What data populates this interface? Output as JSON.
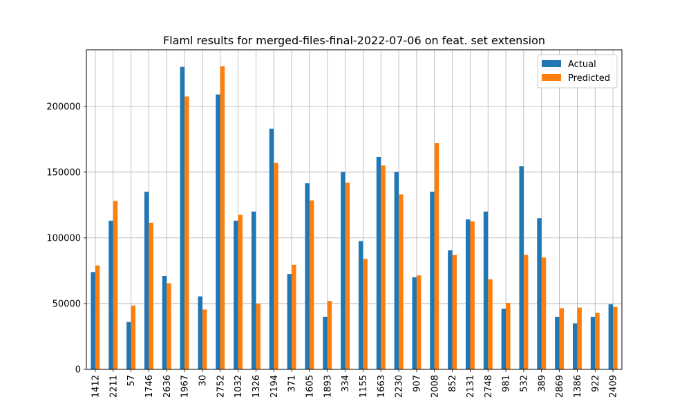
{
  "chart_data": {
    "type": "bar",
    "title": "Flaml results for merged-files-final-2022-07-06 on feat. set extension",
    "xlabel": "",
    "ylabel": "",
    "ylim": [
      0,
      243000
    ],
    "yticks": [
      0,
      50000,
      100000,
      150000,
      200000
    ],
    "grid": true,
    "legend_position": "top-right",
    "categories": [
      "1412",
      "2211",
      "57",
      "1746",
      "2636",
      "1967",
      "30",
      "2752",
      "1032",
      "1326",
      "2194",
      "371",
      "1605",
      "1893",
      "334",
      "1155",
      "1663",
      "2230",
      "907",
      "2008",
      "852",
      "2131",
      "2748",
      "981",
      "532",
      "389",
      "2869",
      "1386",
      "922",
      "2409"
    ],
    "series": [
      {
        "name": "Actual",
        "color": "#1f77b4",
        "values": [
          74000,
          113000,
          36000,
          135000,
          71000,
          230000,
          55500,
          209000,
          113000,
          120000,
          183000,
          72500,
          141500,
          40000,
          150000,
          97500,
          161500,
          150000,
          70000,
          135000,
          90500,
          114000,
          120000,
          46000,
          154500,
          115000,
          40000,
          35000,
          40000,
          49500
        ]
      },
      {
        "name": "Predicted",
        "color": "#ff7f0e",
        "values": [
          79000,
          128000,
          48500,
          111500,
          65500,
          207500,
          45500,
          230500,
          117500,
          50000,
          157000,
          79500,
          128500,
          52000,
          142000,
          84000,
          155000,
          133000,
          71500,
          172000,
          87000,
          112500,
          68500,
          50500,
          87000,
          85000,
          46500,
          47000,
          43000,
          47500
        ]
      }
    ]
  }
}
